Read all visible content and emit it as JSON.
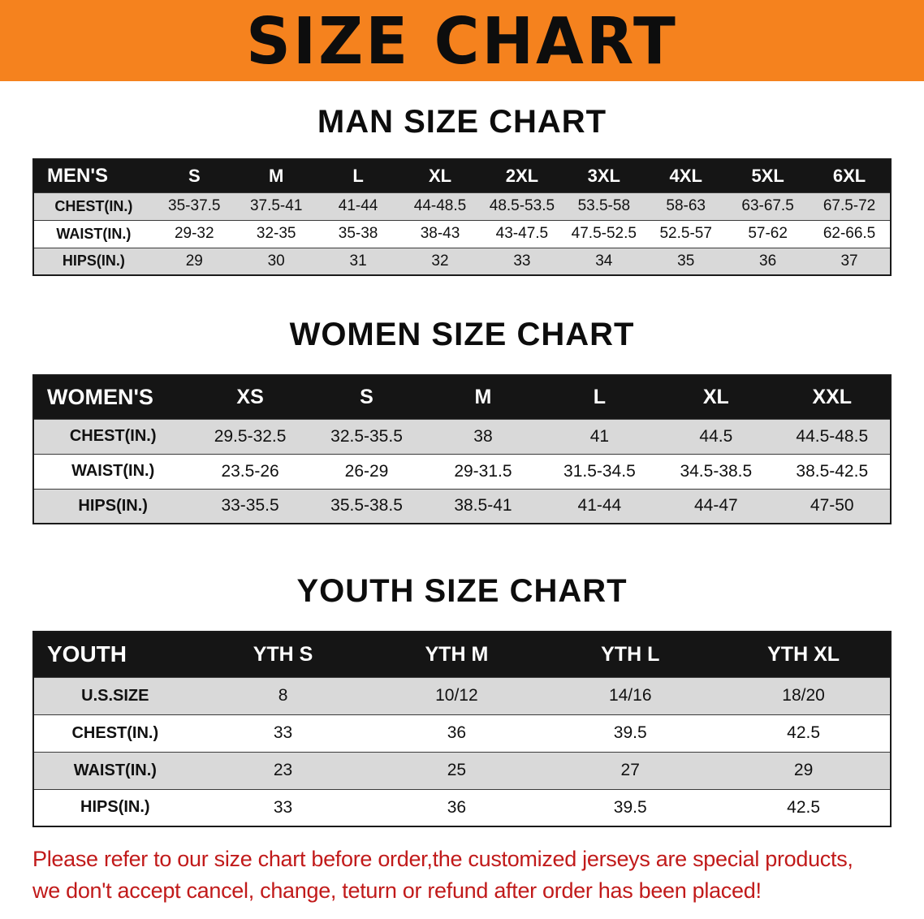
{
  "banner": {
    "title": "SIZE CHART"
  },
  "colors": {
    "banner_bg": "#f5821e",
    "table_header_bg": "#151515",
    "row_gray": "#d9d9d9",
    "footer_red": "#c11a1a"
  },
  "sections": [
    {
      "id": "men",
      "heading": "MAN SIZE CHART",
      "table": {
        "header": [
          "MEN'S",
          "S",
          "M",
          "L",
          "XL",
          "2XL",
          "3XL",
          "4XL",
          "5XL",
          "6XL"
        ],
        "rows": [
          [
            "CHEST(IN.)",
            "35-37.5",
            "37.5-41",
            "41-44",
            "44-48.5",
            "48.5-53.5",
            "53.5-58",
            "58-63",
            "63-67.5",
            "67.5-72"
          ],
          [
            "WAIST(IN.)",
            "29-32",
            "32-35",
            "35-38",
            "38-43",
            "43-47.5",
            "47.5-52.5",
            "52.5-57",
            "57-62",
            "62-66.5"
          ],
          [
            "HIPS(IN.)",
            "29",
            "30",
            "31",
            "32",
            "33",
            "34",
            "35",
            "36",
            "37"
          ]
        ]
      }
    },
    {
      "id": "women",
      "heading": "WOMEN SIZE CHART",
      "table": {
        "header": [
          "WOMEN'S",
          "XS",
          "S",
          "M",
          "L",
          "XL",
          "XXL"
        ],
        "rows": [
          [
            "CHEST(IN.)",
            "29.5-32.5",
            "32.5-35.5",
            "38",
            "41",
            "44.5",
            "44.5-48.5"
          ],
          [
            "WAIST(IN.)",
            "23.5-26",
            "26-29",
            "29-31.5",
            "31.5-34.5",
            "34.5-38.5",
            "38.5-42.5"
          ],
          [
            "HIPS(IN.)",
            "33-35.5",
            "35.5-38.5",
            "38.5-41",
            "41-44",
            "44-47",
            "47-50"
          ]
        ]
      }
    },
    {
      "id": "youth",
      "heading": "YOUTH SIZE CHART",
      "table": {
        "header": [
          "YOUTH",
          "YTH S",
          "YTH M",
          "YTH L",
          "YTH XL"
        ],
        "rows": [
          [
            "U.S.SIZE",
            "8",
            "10/12",
            "14/16",
            "18/20"
          ],
          [
            "CHEST(IN.)",
            "33",
            "36",
            "39.5",
            "42.5"
          ],
          [
            "WAIST(IN.)",
            "23",
            "25",
            "27",
            "29"
          ],
          [
            "HIPS(IN.)",
            "33",
            "36",
            "39.5",
            "42.5"
          ]
        ]
      }
    }
  ],
  "footer": {
    "lines": [
      "Please refer to our size chart before order,the customized jerseys are special products,",
      "we don't accept cancel, change, teturn or refund after order has been placed!"
    ]
  }
}
